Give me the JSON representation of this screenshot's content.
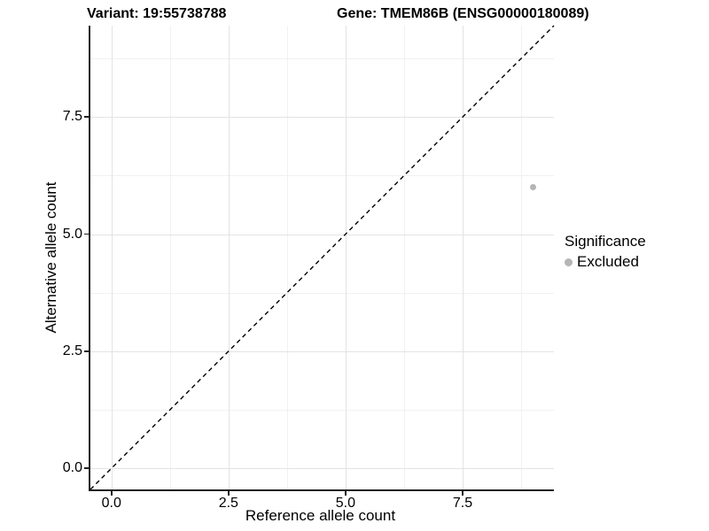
{
  "title": {
    "variant": "Variant: 19:55738788",
    "gene": "Gene: TMEM86B (ENSG00000180089)"
  },
  "chart_data": {
    "type": "scatter",
    "title_left": "Variant: 19:55738788",
    "title_right": "Gene: TMEM86B (ENSG00000180089)",
    "xlabel": "Reference allele count",
    "ylabel": "Alternative allele count",
    "xlim": [
      -0.45,
      9.45
    ],
    "ylim": [
      -0.45,
      9.45
    ],
    "x_ticks": [
      0.0,
      2.5,
      5.0,
      7.5
    ],
    "y_ticks": [
      0.0,
      2.5,
      5.0,
      7.5
    ],
    "x_tick_labels": [
      "0.0",
      "2.5",
      "5.0",
      "7.5"
    ],
    "y_tick_labels": [
      "0.0",
      "2.5",
      "5.0",
      "7.5"
    ],
    "x_minor_ticks": [
      1.25,
      3.75,
      6.25,
      8.75
    ],
    "y_minor_ticks": [
      1.25,
      3.75,
      6.25,
      8.75
    ],
    "grid": true,
    "legend_position": "right",
    "series": [
      {
        "name": "Excluded",
        "color": "#b5b5b5",
        "points": [
          {
            "x": 9,
            "y": 6
          }
        ]
      }
    ],
    "reference_line": {
      "kind": "identity",
      "slope": 1,
      "intercept": 0,
      "style": "dashed",
      "color": "#000000"
    },
    "legend": {
      "title": "Significance",
      "items": [
        {
          "label": "Excluded",
          "color": "#b5b5b5"
        }
      ]
    }
  },
  "colors": {
    "background": "#ffffff",
    "grid_major": "#e3e3e3",
    "grid_minor": "#f1f1f1",
    "axis_line": "#1f1f1f",
    "point": "#b5b5b5",
    "text": "#000000"
  }
}
